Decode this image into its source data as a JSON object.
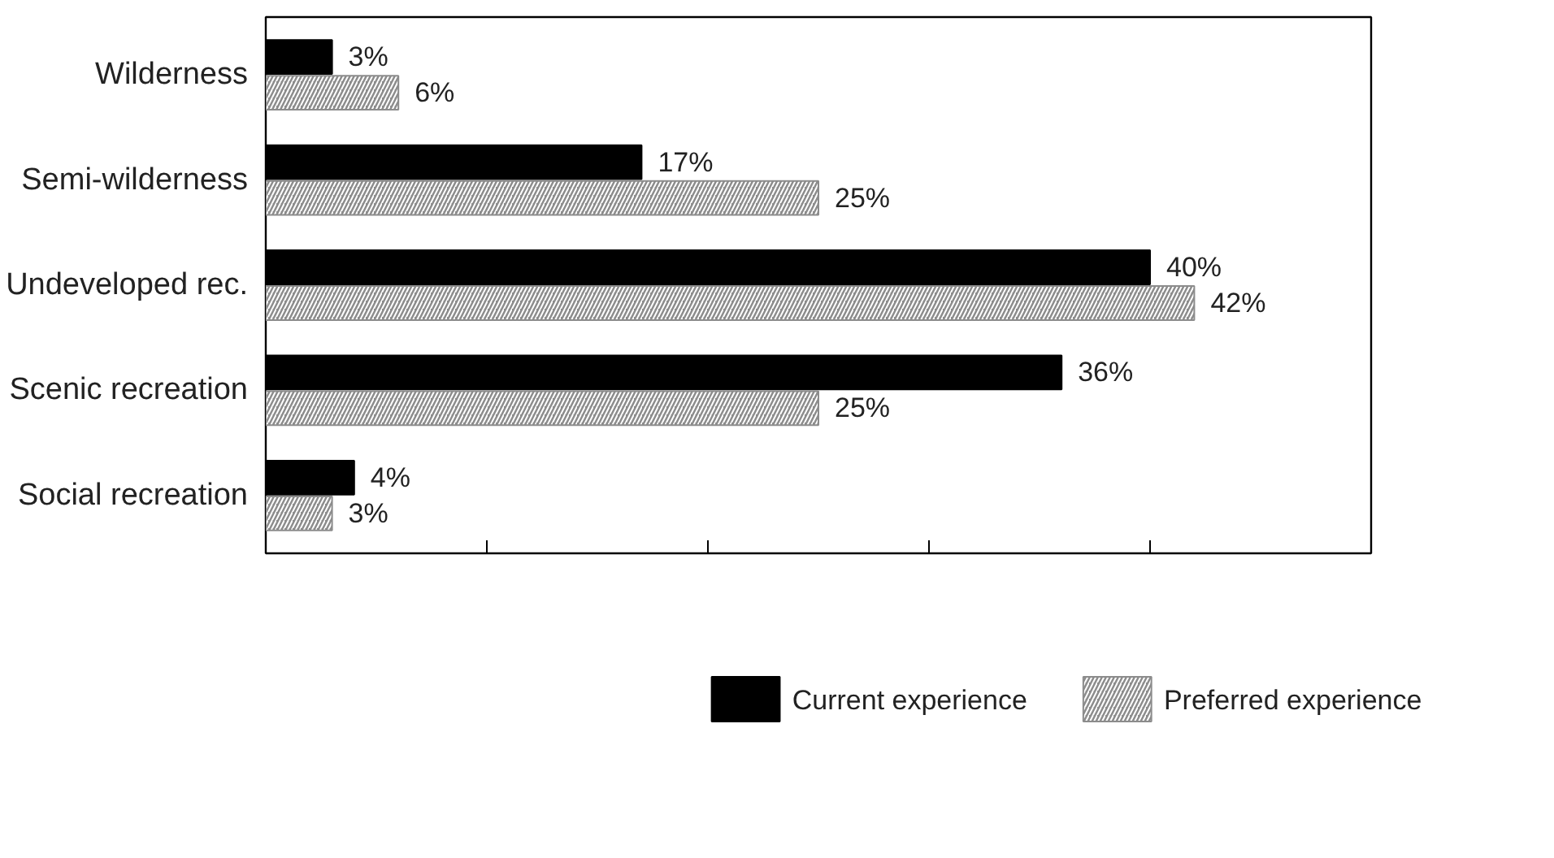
{
  "chart_data": {
    "type": "bar",
    "orientation": "horizontal",
    "categories": [
      "Wilderness",
      "Semi-wilderness",
      "Undeveloped rec.",
      "Scenic recreation",
      "Social recreation"
    ],
    "series": [
      {
        "name": "Current experience",
        "color": "#000000",
        "values": [
          3,
          17,
          40,
          36,
          4
        ],
        "value_labels": [
          "3%",
          "17%",
          "40%",
          "36%",
          "4%"
        ]
      },
      {
        "name": "Preferred experience",
        "color": "#8c8c8c",
        "values": [
          6,
          25,
          42,
          25,
          3
        ],
        "value_labels": [
          "6%",
          "25%",
          "42%",
          "25%",
          "3%"
        ]
      }
    ],
    "xlim": [
      0,
      50
    ],
    "xticks": [
      {
        "value": 10,
        "label": null
      },
      {
        "value": 20,
        "label": null
      },
      {
        "value": 30,
        "label": null
      },
      {
        "value": 40,
        "label": null
      }
    ],
    "tick_labels": "y",
    "grid": false,
    "legend": "bottom"
  }
}
